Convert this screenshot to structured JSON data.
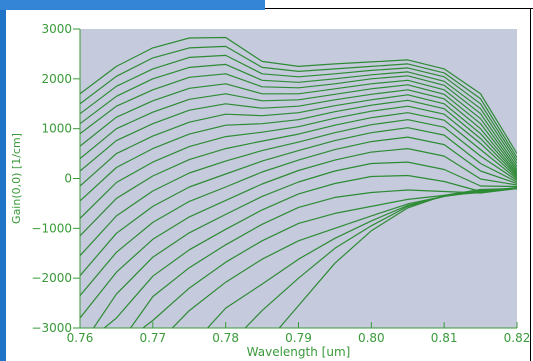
{
  "colors": {
    "plot_bg": "#c5cadc",
    "curve": "#2e8b35",
    "axis_text": "#3a9a3a",
    "axis_line": "#3a9a3a",
    "frame_blue": "#1f74c8"
  },
  "chart_data": {
    "type": "line",
    "xlabel": "Wavelength [um]",
    "ylabel": "Gain(0,0) [1/cm]",
    "xlim": [
      0.76,
      0.82
    ],
    "ylim": [
      -3000,
      3000
    ],
    "xticks": [
      "0.76",
      "0.77",
      "0.78",
      "0.79",
      "0.80",
      "0.81",
      "0.82"
    ],
    "yticks": [
      "-3000",
      "-2000",
      "-1000",
      "0",
      "1000",
      "2000",
      "3000"
    ],
    "grid": false,
    "x": [
      0.76,
      0.765,
      0.77,
      0.775,
      0.78,
      0.785,
      0.79,
      0.795,
      0.8,
      0.805,
      0.81,
      0.815,
      0.82
    ],
    "series": [
      {
        "values": [
          1700,
          2250,
          2620,
          2820,
          2830,
          2350,
          2250,
          2300,
          2340,
          2380,
          2200,
          1700,
          500
        ]
      },
      {
        "values": [
          1500,
          2050,
          2420,
          2620,
          2650,
          2230,
          2150,
          2200,
          2250,
          2300,
          2120,
          1600,
          420
        ]
      },
      {
        "values": [
          1300,
          1850,
          2200,
          2430,
          2470,
          2100,
          2040,
          2100,
          2170,
          2220,
          2040,
          1500,
          360
        ]
      },
      {
        "values": [
          1100,
          1650,
          2000,
          2230,
          2290,
          1970,
          1930,
          2000,
          2080,
          2140,
          1950,
          1400,
          300
        ]
      },
      {
        "values": [
          900,
          1450,
          1780,
          2030,
          2100,
          1840,
          1820,
          1900,
          2000,
          2060,
          1870,
          1300,
          240
        ]
      },
      {
        "values": [
          650,
          1230,
          1560,
          1810,
          1900,
          1700,
          1700,
          1800,
          1900,
          1970,
          1780,
          1200,
          190
        ]
      },
      {
        "values": [
          400,
          1000,
          1330,
          1590,
          1700,
          1560,
          1580,
          1690,
          1800,
          1880,
          1690,
          1100,
          150
        ]
      },
      {
        "values": [
          150,
          760,
          1100,
          1370,
          1500,
          1410,
          1450,
          1580,
          1690,
          1780,
          1600,
          1000,
          110
        ]
      },
      {
        "values": [
          -150,
          500,
          850,
          1130,
          1290,
          1260,
          1320,
          1460,
          1580,
          1680,
          1500,
          900,
          80
        ]
      },
      {
        "values": [
          -450,
          220,
          600,
          890,
          1070,
          1100,
          1180,
          1340,
          1470,
          1570,
          1400,
          800,
          50
        ]
      },
      {
        "values": [
          -800,
          -80,
          330,
          640,
          840,
          930,
          1040,
          1210,
          1350,
          1450,
          1290,
          700,
          20
        ]
      },
      {
        "values": [
          -1150,
          -400,
          50,
          380,
          600,
          750,
          890,
          1070,
          1220,
          1320,
          1170,
          580,
          -10
        ]
      },
      {
        "values": [
          -1550,
          -750,
          -250,
          110,
          350,
          560,
          730,
          920,
          1080,
          1180,
          1030,
          450,
          -40
        ]
      },
      {
        "values": [
          -1950,
          -1100,
          -560,
          -170,
          90,
          350,
          560,
          760,
          920,
          1020,
          870,
          300,
          -70
        ]
      },
      {
        "values": [
          -2350,
          -1480,
          -880,
          -460,
          -170,
          130,
          370,
          580,
          740,
          830,
          680,
          150,
          -100
        ]
      },
      {
        "values": [
          -2800,
          -1880,
          -1220,
          -770,
          -440,
          -110,
          160,
          370,
          530,
          600,
          450,
          -10,
          -130
        ]
      },
      {
        "values": [
          null,
          -2320,
          -1580,
          -1090,
          -720,
          -360,
          -70,
          150,
          300,
          330,
          180,
          -150,
          -160
        ]
      },
      {
        "values": [
          null,
          -2800,
          -1960,
          -1430,
          -1020,
          -630,
          -310,
          -100,
          40,
          60,
          -60,
          -260,
          -180
        ]
      },
      {
        "values": [
          null,
          null,
          -2370,
          -1790,
          -1330,
          -920,
          -580,
          -380,
          -280,
          -230,
          -260,
          -290,
          -200
        ]
      },
      {
        "values": [
          null,
          null,
          -2850,
          -2200,
          -1680,
          -1250,
          -900,
          -700,
          -560,
          -420,
          -340,
          -280,
          -200
        ]
      },
      {
        "values": [
          null,
          null,
          null,
          -2650,
          -2080,
          -1620,
          -1250,
          -1000,
          -750,
          -510,
          -360,
          -260,
          -200
        ]
      },
      {
        "values": [
          null,
          null,
          null,
          null,
          -2600,
          -2120,
          -1620,
          -1200,
          -850,
          -540,
          -360,
          -240,
          -200
        ]
      },
      {
        "values": [
          null,
          null,
          null,
          null,
          null,
          -2650,
          -2000,
          -1400,
          -950,
          -560,
          -350,
          -230,
          -200
        ]
      },
      {
        "values": [
          null,
          null,
          null,
          null,
          null,
          null,
          -2550,
          -1700,
          -1050,
          -590,
          -340,
          -220,
          -200
        ]
      }
    ]
  }
}
